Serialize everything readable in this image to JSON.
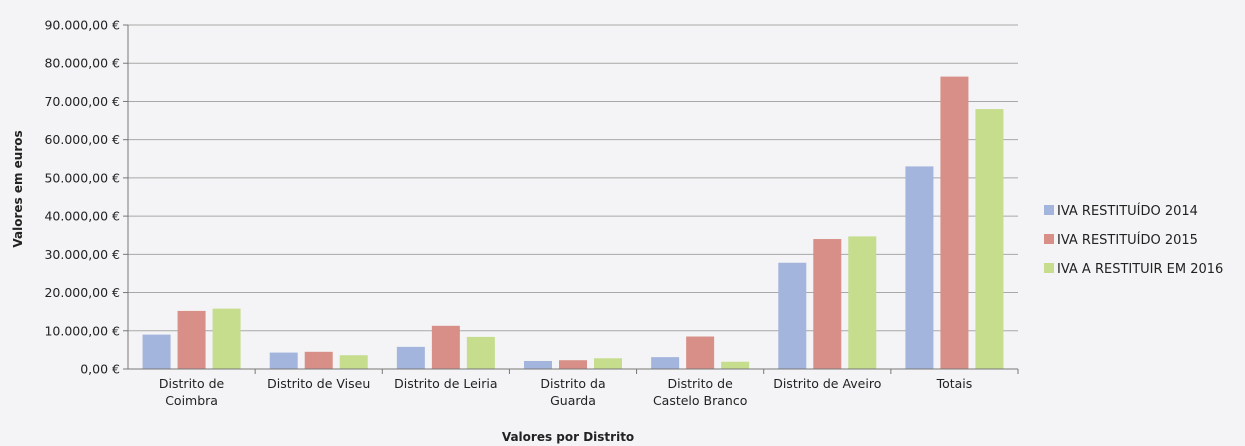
{
  "chart_data": {
    "type": "bar",
    "title": "",
    "xlabel": "Valores por Distrito",
    "ylabel": "Valores em euros",
    "ylim": [
      0,
      90000
    ],
    "y_ticks": [
      0,
      10000,
      20000,
      30000,
      40000,
      50000,
      60000,
      70000,
      80000,
      90000
    ],
    "y_tick_labels": [
      "0,00 €",
      "10.000,00 €",
      "20.000,00 €",
      "30.000,00 €",
      "40.000,00 €",
      "50.000,00 €",
      "60.000,00 €",
      "70.000,00 €",
      "80.000,00 €",
      "90.000,00 €"
    ],
    "grid": true,
    "legend_position": "right",
    "categories": [
      [
        "Distrito de",
        "Coimbra"
      ],
      [
        "Distrito de Viseu"
      ],
      [
        "Distrito de Leiria"
      ],
      [
        "Distrito da",
        "Guarda"
      ],
      [
        "Distrito de",
        "Castelo Branco"
      ],
      [
        "Distrito de Aveiro"
      ],
      [
        "Totais"
      ]
    ],
    "series": [
      {
        "name": "IVA RESTITUÍDO 2014",
        "color": "#a3b4dd",
        "values": [
          9000,
          4300,
          5800,
          2100,
          3100,
          27800,
          53000
        ]
      },
      {
        "name": "IVA RESTITUÍDO 2015",
        "color": "#d88f88",
        "values": [
          15200,
          4500,
          11300,
          2300,
          8500,
          34000,
          76500
        ]
      },
      {
        "name": "IVA A RESTITUIR EM 2016",
        "color": "#c5dd8d",
        "values": [
          15800,
          3600,
          8400,
          2800,
          1900,
          34700,
          68000
        ]
      }
    ]
  }
}
